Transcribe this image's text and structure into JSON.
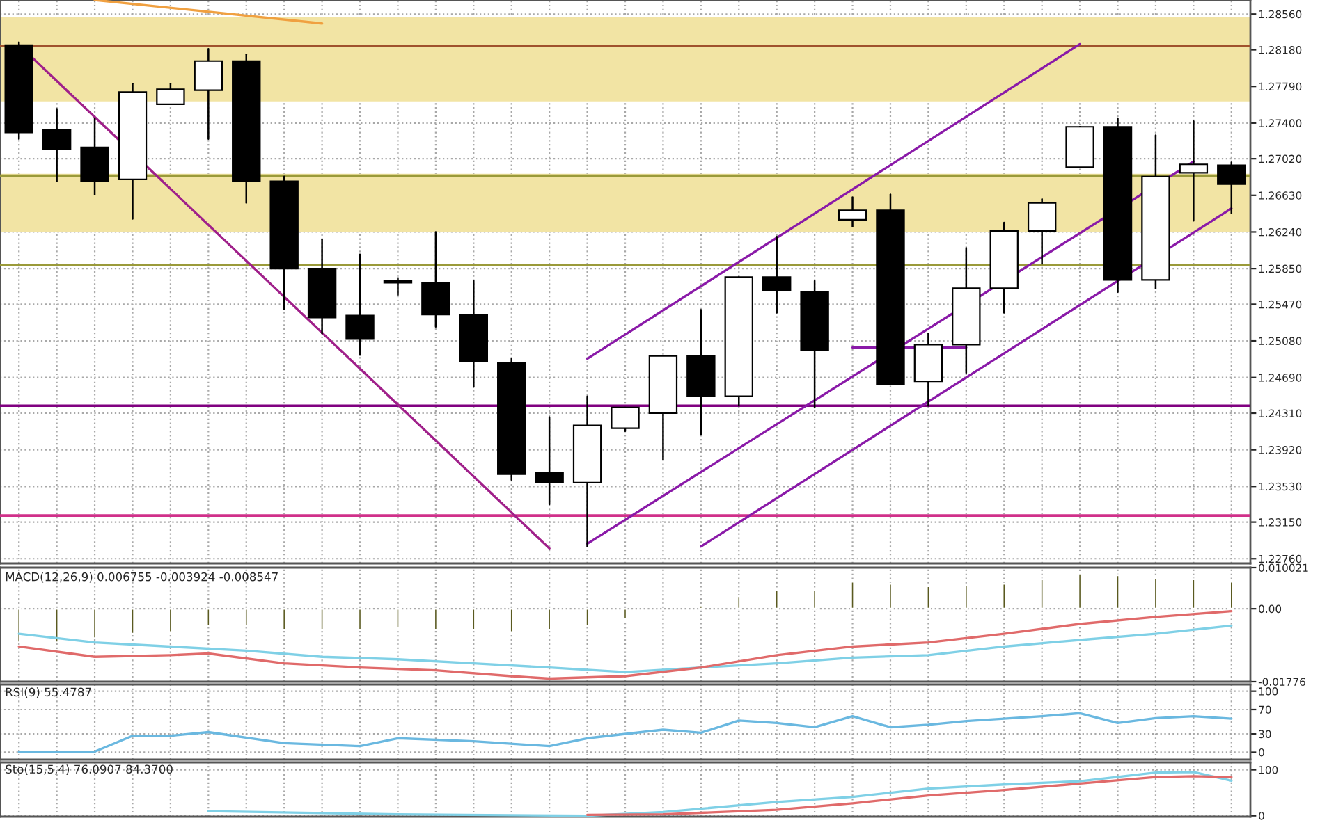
{
  "chart_data": [
    {
      "type": "candlestick",
      "categories": [
        null,
        null,
        null,
        null,
        null,
        null,
        null,
        null,
        null,
        null,
        null,
        null,
        null,
        null,
        null,
        null,
        null,
        null,
        null,
        null,
        null,
        null,
        null,
        null,
        null,
        null,
        null,
        null,
        null,
        null,
        null,
        null,
        null
      ],
      "ohlc": [
        [
          1.2823,
          1.2826,
          1.2723,
          1.273
        ],
        [
          1.2733,
          1.2755,
          1.2678,
          1.2712
        ],
        [
          1.2714,
          1.2745,
          1.2664,
          1.2678
        ],
        [
          1.268,
          1.2782,
          1.2638,
          1.2773
        ],
        [
          1.276,
          1.2782,
          1.276,
          1.2776
        ],
        [
          1.2775,
          1.2819,
          1.2723,
          1.2806
        ],
        [
          1.2806,
          1.2813,
          1.2655,
          1.2678
        ],
        [
          1.2678,
          1.2683,
          1.2542,
          1.2585
        ],
        [
          1.2585,
          1.2616,
          1.2516,
          1.2533
        ],
        [
          1.2535,
          1.26,
          1.2493,
          1.251
        ],
        [
          1.2572,
          1.2575,
          1.2557,
          1.257
        ],
        [
          1.257,
          1.2624,
          1.2523,
          1.2536
        ],
        [
          1.2536,
          1.2572,
          1.2459,
          1.2486
        ],
        [
          1.2485,
          1.2489,
          1.236,
          1.2366
        ],
        [
          1.2368,
          1.2427,
          1.2334,
          1.2357
        ],
        [
          1.2357,
          1.2449,
          1.2289,
          1.2418
        ],
        [
          1.2415,
          1.2437,
          1.2412,
          1.2437
        ],
        [
          1.2431,
          1.2492,
          1.2382,
          1.2492
        ],
        [
          1.2492,
          1.2541,
          1.2408,
          1.2449
        ],
        [
          1.2449,
          1.2576,
          1.2439,
          1.2576
        ],
        [
          1.2576,
          1.2619,
          1.2538,
          1.2562
        ],
        [
          1.256,
          1.2572,
          1.2437,
          1.2498
        ],
        [
          1.2637,
          1.2661,
          1.263,
          1.2647
        ],
        [
          1.2647,
          1.2664,
          1.2462,
          1.2462
        ],
        [
          1.2465,
          1.2516,
          1.2439,
          1.2504
        ],
        [
          1.2504,
          1.2607,
          1.2474,
          1.2564
        ],
        [
          1.2564,
          1.2634,
          1.2538,
          1.2625
        ],
        [
          1.2625,
          1.2659,
          1.259,
          1.2655
        ],
        [
          1.2693,
          1.2736,
          1.2693,
          1.2736
        ],
        [
          1.2736,
          1.2745,
          1.256,
          1.2573
        ],
        [
          1.2573,
          1.2727,
          1.2564,
          1.2683
        ],
        [
          1.2687,
          1.2742,
          1.2636,
          1.2696
        ],
        [
          1.2695,
          1.2698,
          1.2644,
          1.2675
        ]
      ],
      "ylim": [
        1.2271,
        1.2871
      ],
      "yticks": [
        {
          "value": 1.2856,
          "label": "1.28560"
        },
        {
          "value": 1.2818,
          "label": "1.28180"
        },
        {
          "value": 1.2779,
          "label": "1.27790"
        },
        {
          "value": 1.274,
          "label": "1.27400"
        },
        {
          "value": 1.2702,
          "label": "1.27020"
        },
        {
          "value": 1.2663,
          "label": "1.26630"
        },
        {
          "value": 1.2624,
          "label": "1.26240"
        },
        {
          "value": 1.2585,
          "label": "1.25850"
        },
        {
          "value": 1.2547,
          "label": "1.25470"
        },
        {
          "value": 1.2508,
          "label": "1.25080"
        },
        {
          "value": 1.2469,
          "label": "1.24690"
        },
        {
          "value": 1.2431,
          "label": "1.24310"
        },
        {
          "value": 1.2392,
          "label": "1.23920"
        },
        {
          "value": 1.2353,
          "label": "1.23530"
        },
        {
          "value": 1.2315,
          "label": "1.23150"
        },
        {
          "value": 1.2276,
          "label": "1.22760"
        }
      ],
      "grid": true,
      "tick_labels": "y",
      "bands": [
        {
          "axis": "y",
          "from": 1.2763,
          "to": 1.2853,
          "color": "#f2e4a4"
        },
        {
          "axis": "y",
          "from": 1.2624,
          "to": 1.2686,
          "color": "#f2e4a4"
        }
      ],
      "ref_lines": [
        {
          "axis": "y",
          "value": 1.2822,
          "color": "#a0522d",
          "line_style": "solid"
        },
        {
          "axis": "y",
          "value": 1.2684,
          "color": "#9a9a3a",
          "line_style": "solid"
        },
        {
          "axis": "y",
          "value": 1.2589,
          "color": "#9a9a3a",
          "line_style": "solid"
        },
        {
          "axis": "y",
          "value": 1.2439,
          "color": "#800080",
          "line_style": "solid"
        },
        {
          "axis": "y",
          "value": 1.2322,
          "color": "#d0308a",
          "line_style": "solid"
        }
      ],
      "series": [
        {
          "type": "line",
          "color": "#a0208a",
          "values": [
            1.2823,
            null,
            null,
            null,
            null,
            null,
            null,
            null,
            null,
            null,
            null,
            null,
            null,
            null,
            1.2287,
            null,
            null,
            null,
            null,
            null,
            null,
            null,
            null,
            null,
            null,
            null,
            null,
            null,
            null,
            null,
            null,
            null,
            null
          ]
        },
        {
          "type": "line",
          "color": "#8a1aa8",
          "values": [
            null,
            null,
            null,
            null,
            null,
            null,
            null,
            null,
            null,
            null,
            null,
            null,
            null,
            null,
            null,
            1.2489,
            null,
            null,
            null,
            null,
            null,
            null,
            null,
            null,
            null,
            null,
            null,
            null,
            1.2824,
            null,
            null,
            null,
            null
          ]
        },
        {
          "type": "line",
          "color": "#8a1aa8",
          "values": [
            null,
            null,
            null,
            null,
            null,
            null,
            null,
            null,
            null,
            null,
            null,
            null,
            null,
            null,
            null,
            1.2292,
            null,
            null,
            null,
            null,
            null,
            null,
            null,
            null,
            null,
            null,
            null,
            null,
            null,
            null,
            null,
            1.2699,
            null
          ]
        },
        {
          "type": "line",
          "color": "#8a1aa8",
          "values": [
            null,
            null,
            null,
            null,
            null,
            null,
            null,
            null,
            null,
            null,
            null,
            null,
            null,
            null,
            null,
            null,
            null,
            null,
            1.2289,
            null,
            null,
            null,
            null,
            null,
            null,
            null,
            null,
            null,
            null,
            null,
            null,
            null,
            1.2649
          ]
        },
        {
          "type": "line",
          "color": "#8a1aa8",
          "values": [
            null,
            null,
            null,
            null,
            null,
            null,
            null,
            null,
            null,
            null,
            null,
            null,
            null,
            null,
            null,
            null,
            null,
            null,
            null,
            null,
            null,
            null,
            1.2501,
            null,
            null,
            1.2501,
            null,
            null,
            null,
            null,
            null,
            null,
            null
          ]
        },
        {
          "type": "line",
          "color": "#f0a040",
          "values": [
            null,
            null,
            1.2871,
            null,
            null,
            null,
            null,
            null,
            1.2846,
            null,
            null,
            null,
            null,
            null,
            null,
            null,
            null,
            null,
            null,
            null,
            null,
            null,
            null,
            null,
            null,
            null,
            null,
            null,
            null,
            null,
            null,
            null,
            null
          ]
        }
      ]
    },
    {
      "type": "bar",
      "title": "MACD(12,26,9) 0.006755 -0.003924 -0.008547",
      "categories": [
        null,
        null,
        null,
        null,
        null,
        null,
        null,
        null,
        null,
        null,
        null,
        null,
        null,
        null,
        null,
        null,
        null,
        null,
        null,
        null,
        null,
        null,
        null,
        null,
        null,
        null,
        null,
        null,
        null,
        null,
        null,
        null,
        null
      ],
      "ylim": [
        -0.01776,
        0.010021
      ],
      "yticks": [
        {
          "value": 0.010021,
          "label": "0.010021"
        },
        {
          "value": 0,
          "label": "0.00"
        },
        {
          "value": -0.01776,
          "label": "-0.01776"
        }
      ],
      "grid": true,
      "tick_labels": "y",
      "series": [
        {
          "type": "bar",
          "color": "#5a5a20",
          "values": [
            -0.0082,
            -0.0082,
            -0.0072,
            -0.0061,
            -0.0057,
            -0.0041,
            -0.0041,
            -0.0051,
            -0.0051,
            -0.0051,
            -0.0047,
            -0.0051,
            -0.0051,
            -0.0057,
            -0.0051,
            -0.0041,
            -0.0025,
            null,
            0.0008,
            0.0031,
            0.0045,
            0.0045,
            0.0066,
            0.0061,
            0.0055,
            0.0057,
            0.0061,
            0.0072,
            0.0086,
            0.0082,
            0.0074,
            0.0072,
            0.0066
          ]
        },
        {
          "type": "line",
          "color": "#7fd0e6",
          "values": [
            -0.0061,
            null,
            -0.0082,
            null,
            -0.0092,
            null,
            -0.0102,
            null,
            -0.0117,
            null,
            -0.0123,
            null,
            -0.0133,
            null,
            -0.0143,
            null,
            -0.0154,
            null,
            -0.0143,
            null,
            -0.0133,
            null,
            -0.0119,
            null,
            -0.0113,
            null,
            -0.0092,
            null,
            -0.0076,
            null,
            -0.0061,
            null,
            -0.0041
          ]
        },
        {
          "type": "line",
          "color": "#e06a6a",
          "values": [
            -0.0092,
            null,
            -0.0117,
            null,
            -0.0113,
            -0.0109,
            null,
            -0.0133,
            null,
            -0.0143,
            null,
            -0.015,
            null,
            -0.0164,
            -0.017,
            null,
            -0.0164,
            null,
            -0.0143,
            null,
            -0.0113,
            null,
            -0.0092,
            null,
            -0.0082,
            null,
            -0.0061,
            null,
            -0.0037,
            null,
            -0.002,
            null,
            -0.0006
          ]
        }
      ]
    },
    {
      "type": "line",
      "title": "RSI(9) 55.4787",
      "categories": [
        null,
        null,
        null,
        null,
        null,
        null,
        null,
        null,
        null,
        null,
        null,
        null,
        null,
        null,
        null,
        null,
        null,
        null,
        null,
        null,
        null,
        null,
        null,
        null,
        null,
        null,
        null,
        null,
        null,
        null,
        null,
        null,
        null
      ],
      "ylim": [
        -12,
        111
      ],
      "yticks": [
        100,
        70,
        30,
        0
      ],
      "grid": true,
      "tick_labels": "y",
      "series": [
        {
          "type": "line",
          "color": "#6ab8e0",
          "values": [
            1,
            null,
            1,
            27,
            27,
            33,
            null,
            15,
            null,
            10,
            23,
            null,
            18,
            null,
            10,
            23,
            null,
            37,
            32,
            52,
            48,
            41,
            59,
            41,
            45,
            51,
            55,
            59,
            64,
            48,
            56,
            59,
            55
          ]
        }
      ]
    },
    {
      "type": "line",
      "title": "Sto(15,5,4) 76.0907 84.3700",
      "categories": [
        null,
        null,
        null,
        null,
        null,
        null,
        null,
        null,
        null,
        null,
        null,
        null,
        null,
        null,
        null,
        null,
        null,
        null,
        null,
        null,
        null,
        null,
        null,
        null,
        null,
        null,
        null,
        null,
        null,
        null,
        null,
        null,
        null
      ],
      "ylim": [
        -2,
        116
      ],
      "yticks": [
        100,
        0
      ],
      "grid": true,
      "tick_labels": "y",
      "series": [
        {
          "type": "line",
          "color": "#7fd0e6",
          "values": [
            null,
            null,
            null,
            null,
            null,
            10,
            null,
            null,
            null,
            null,
            3,
            null,
            null,
            null,
            null,
            0,
            null,
            8,
            null,
            null,
            30,
            null,
            41,
            null,
            59,
            null,
            68,
            null,
            75,
            null,
            94,
            95,
            76
          ]
        },
        {
          "type": "line",
          "color": "#e06a6a",
          "values": [
            null,
            null,
            null,
            null,
            null,
            null,
            null,
            null,
            null,
            null,
            null,
            null,
            null,
            null,
            null,
            2,
            null,
            3,
            null,
            null,
            13,
            null,
            27,
            null,
            44,
            null,
            56,
            null,
            70,
            null,
            84,
            86,
            84
          ]
        }
      ]
    }
  ]
}
